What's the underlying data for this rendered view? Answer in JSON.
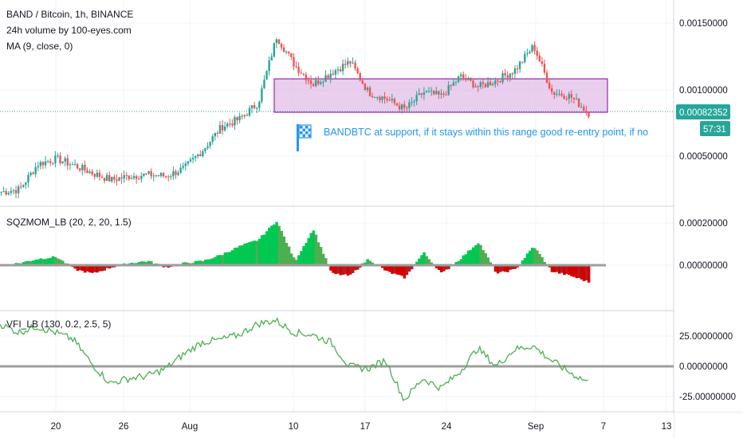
{
  "header": {
    "symbol": "BAND / Bitcoin, 1h, BINANCE",
    "volume_label": "24h volume by 100-eyes.com",
    "ma_label": "MA (9, close, 0)"
  },
  "annotation": {
    "text": "BANDBTC at support, if it stays within this range good re-entry point, if no",
    "icon": "flag-icon"
  },
  "badges": {
    "last_price": "0.00082352",
    "countdown": "57:31"
  },
  "indicators": {
    "sqz_label": "SQZMOM_LB (20, 2, 20, 1.5)",
    "vfi_label": "VFI_LB (130, 0.2, 2.5, 5)"
  },
  "colors": {
    "bull": "#26a69a",
    "bear": "#ef5350",
    "sqz_up": "#00c853",
    "sqz_down": "#d50000",
    "vfi": "#4caf50",
    "zone_fill": "#e1bee7",
    "zone_stroke": "#9c27b0",
    "accent": "#2196f3",
    "badge_price": "#26a69a"
  },
  "chart_data": [
    {
      "type": "candlestick",
      "title": "BAND / Bitcoin, 1h, BINANCE",
      "ylim": [
        0.0002,
        0.0015
      ],
      "y_ticks": [
        "0.00150000",
        "0.00100000",
        "0.00050000"
      ],
      "x_ticks": [
        "20",
        "26",
        "Aug",
        "10",
        "17",
        "24",
        "Sep",
        "7",
        "13"
      ],
      "series": [
        {
          "name": "BAND / Bitcoin",
          "x": [
            "Jul 15",
            "Jul 17",
            "Jul 20",
            "Jul 22",
            "Jul 24",
            "Jul 26",
            "Jul 28",
            "Jul 30",
            "Aug 1",
            "Aug 3",
            "Aug 5",
            "Aug 6",
            "Aug 7",
            "Aug 8",
            "Aug 9",
            "Aug 10",
            "Aug 11",
            "Aug 12",
            "Aug 14",
            "Aug 16",
            "Aug 18",
            "Aug 20",
            "Aug 21",
            "Aug 23",
            "Aug 25",
            "Aug 27",
            "Aug 29",
            "Aug 31",
            "Sep 2",
            "Sep 3",
            "Sep 4",
            "Sep 5",
            "Sep 6"
          ],
          "values": [
            0.00023,
            0.00025,
            0.00044,
            0.00048,
            0.00043,
            0.00037,
            0.00032,
            0.00035,
            0.00036,
            0.00035,
            0.00041,
            0.00055,
            0.00072,
            0.00078,
            0.0009,
            0.0014,
            0.00118,
            0.00104,
            0.00113,
            0.00121,
            0.00098,
            0.00093,
            0.00085,
            0.00098,
            0.00095,
            0.0011,
            0.00102,
            0.00107,
            0.00115,
            0.00133,
            0.00098,
            0.00095,
            0.00082352
          ]
        }
      ],
      "support_zone": [
        0.00082,
        0.00105
      ],
      "last_price": 0.00082352
    },
    {
      "type": "bar",
      "title": "SQZMOM_LB (20, 2, 20, 1.5)",
      "ylim": [
        -8e-05,
        0.00021
      ],
      "y_ticks": [
        "0.00020000",
        "0.00000000"
      ],
      "series": [
        {
          "name": "SQZMOM_LB",
          "x": [
            "Jul 15",
            "Jul 17",
            "Jul 20",
            "Jul 22",
            "Jul 24",
            "Jul 26",
            "Jul 28",
            "Jul 30",
            "Aug 1",
            "Aug 3",
            "Aug 5",
            "Aug 6",
            "Aug 7",
            "Aug 8",
            "Aug 9",
            "Aug 10",
            "Aug 11",
            "Aug 12",
            "Aug 14",
            "Aug 16",
            "Aug 18",
            "Aug 20",
            "Aug 21",
            "Aug 23",
            "Aug 25",
            "Aug 27",
            "Aug 29",
            "Aug 31",
            "Sep 2",
            "Sep 3",
            "Sep 4",
            "Sep 5",
            "Sep 6"
          ],
          "values": [
            0.0,
            1e-05,
            3e-05,
            4e-05,
            -2e-05,
            -4e-05,
            -1e-05,
            1e-05,
            2e-05,
            -1e-05,
            1e-05,
            2e-05,
            5e-05,
            9e-05,
            0.00012,
            0.00021,
            2e-05,
            0.00017,
            -4e-05,
            -5e-05,
            3e-05,
            -3e-05,
            -6e-05,
            6e-05,
            -4e-05,
            3e-05,
            0.00011,
            -4e-05,
            -2e-05,
            9e-05,
            -3e-05,
            -5e-05,
            -8e-05
          ]
        }
      ]
    },
    {
      "type": "line",
      "title": "VFI_LB (130, 0.2, 2.5, 5)",
      "ylim": [
        -31,
        42
      ],
      "y_ticks": [
        "25.00000000",
        "0.00000000",
        "-25.00000000"
      ],
      "series": [
        {
          "name": "VFI_LB",
          "x": [
            "Jul 15",
            "Jul 17",
            "Jul 20",
            "Jul 22",
            "Jul 24",
            "Jul 26",
            "Jul 28",
            "Jul 30",
            "Aug 1",
            "Aug 3",
            "Aug 5",
            "Aug 6",
            "Aug 7",
            "Aug 8",
            "Aug 9",
            "Aug 10",
            "Aug 11",
            "Aug 12",
            "Aug 14",
            "Aug 16",
            "Aug 18",
            "Aug 20",
            "Aug 21",
            "Aug 23",
            "Aug 25",
            "Aug 27",
            "Aug 29",
            "Aug 31",
            "Sep 2",
            "Sep 3",
            "Sep 4",
            "Sep 5",
            "Sep 6"
          ],
          "values": [
            35,
            28,
            33,
            28,
            22,
            2,
            -14,
            -10,
            -8,
            -2,
            10,
            20,
            22,
            26,
            35,
            38,
            28,
            26,
            20,
            0,
            -2,
            5,
            -28,
            -10,
            -18,
            -5,
            15,
            0,
            14,
            17,
            5,
            -5,
            -13
          ]
        }
      ]
    }
  ]
}
